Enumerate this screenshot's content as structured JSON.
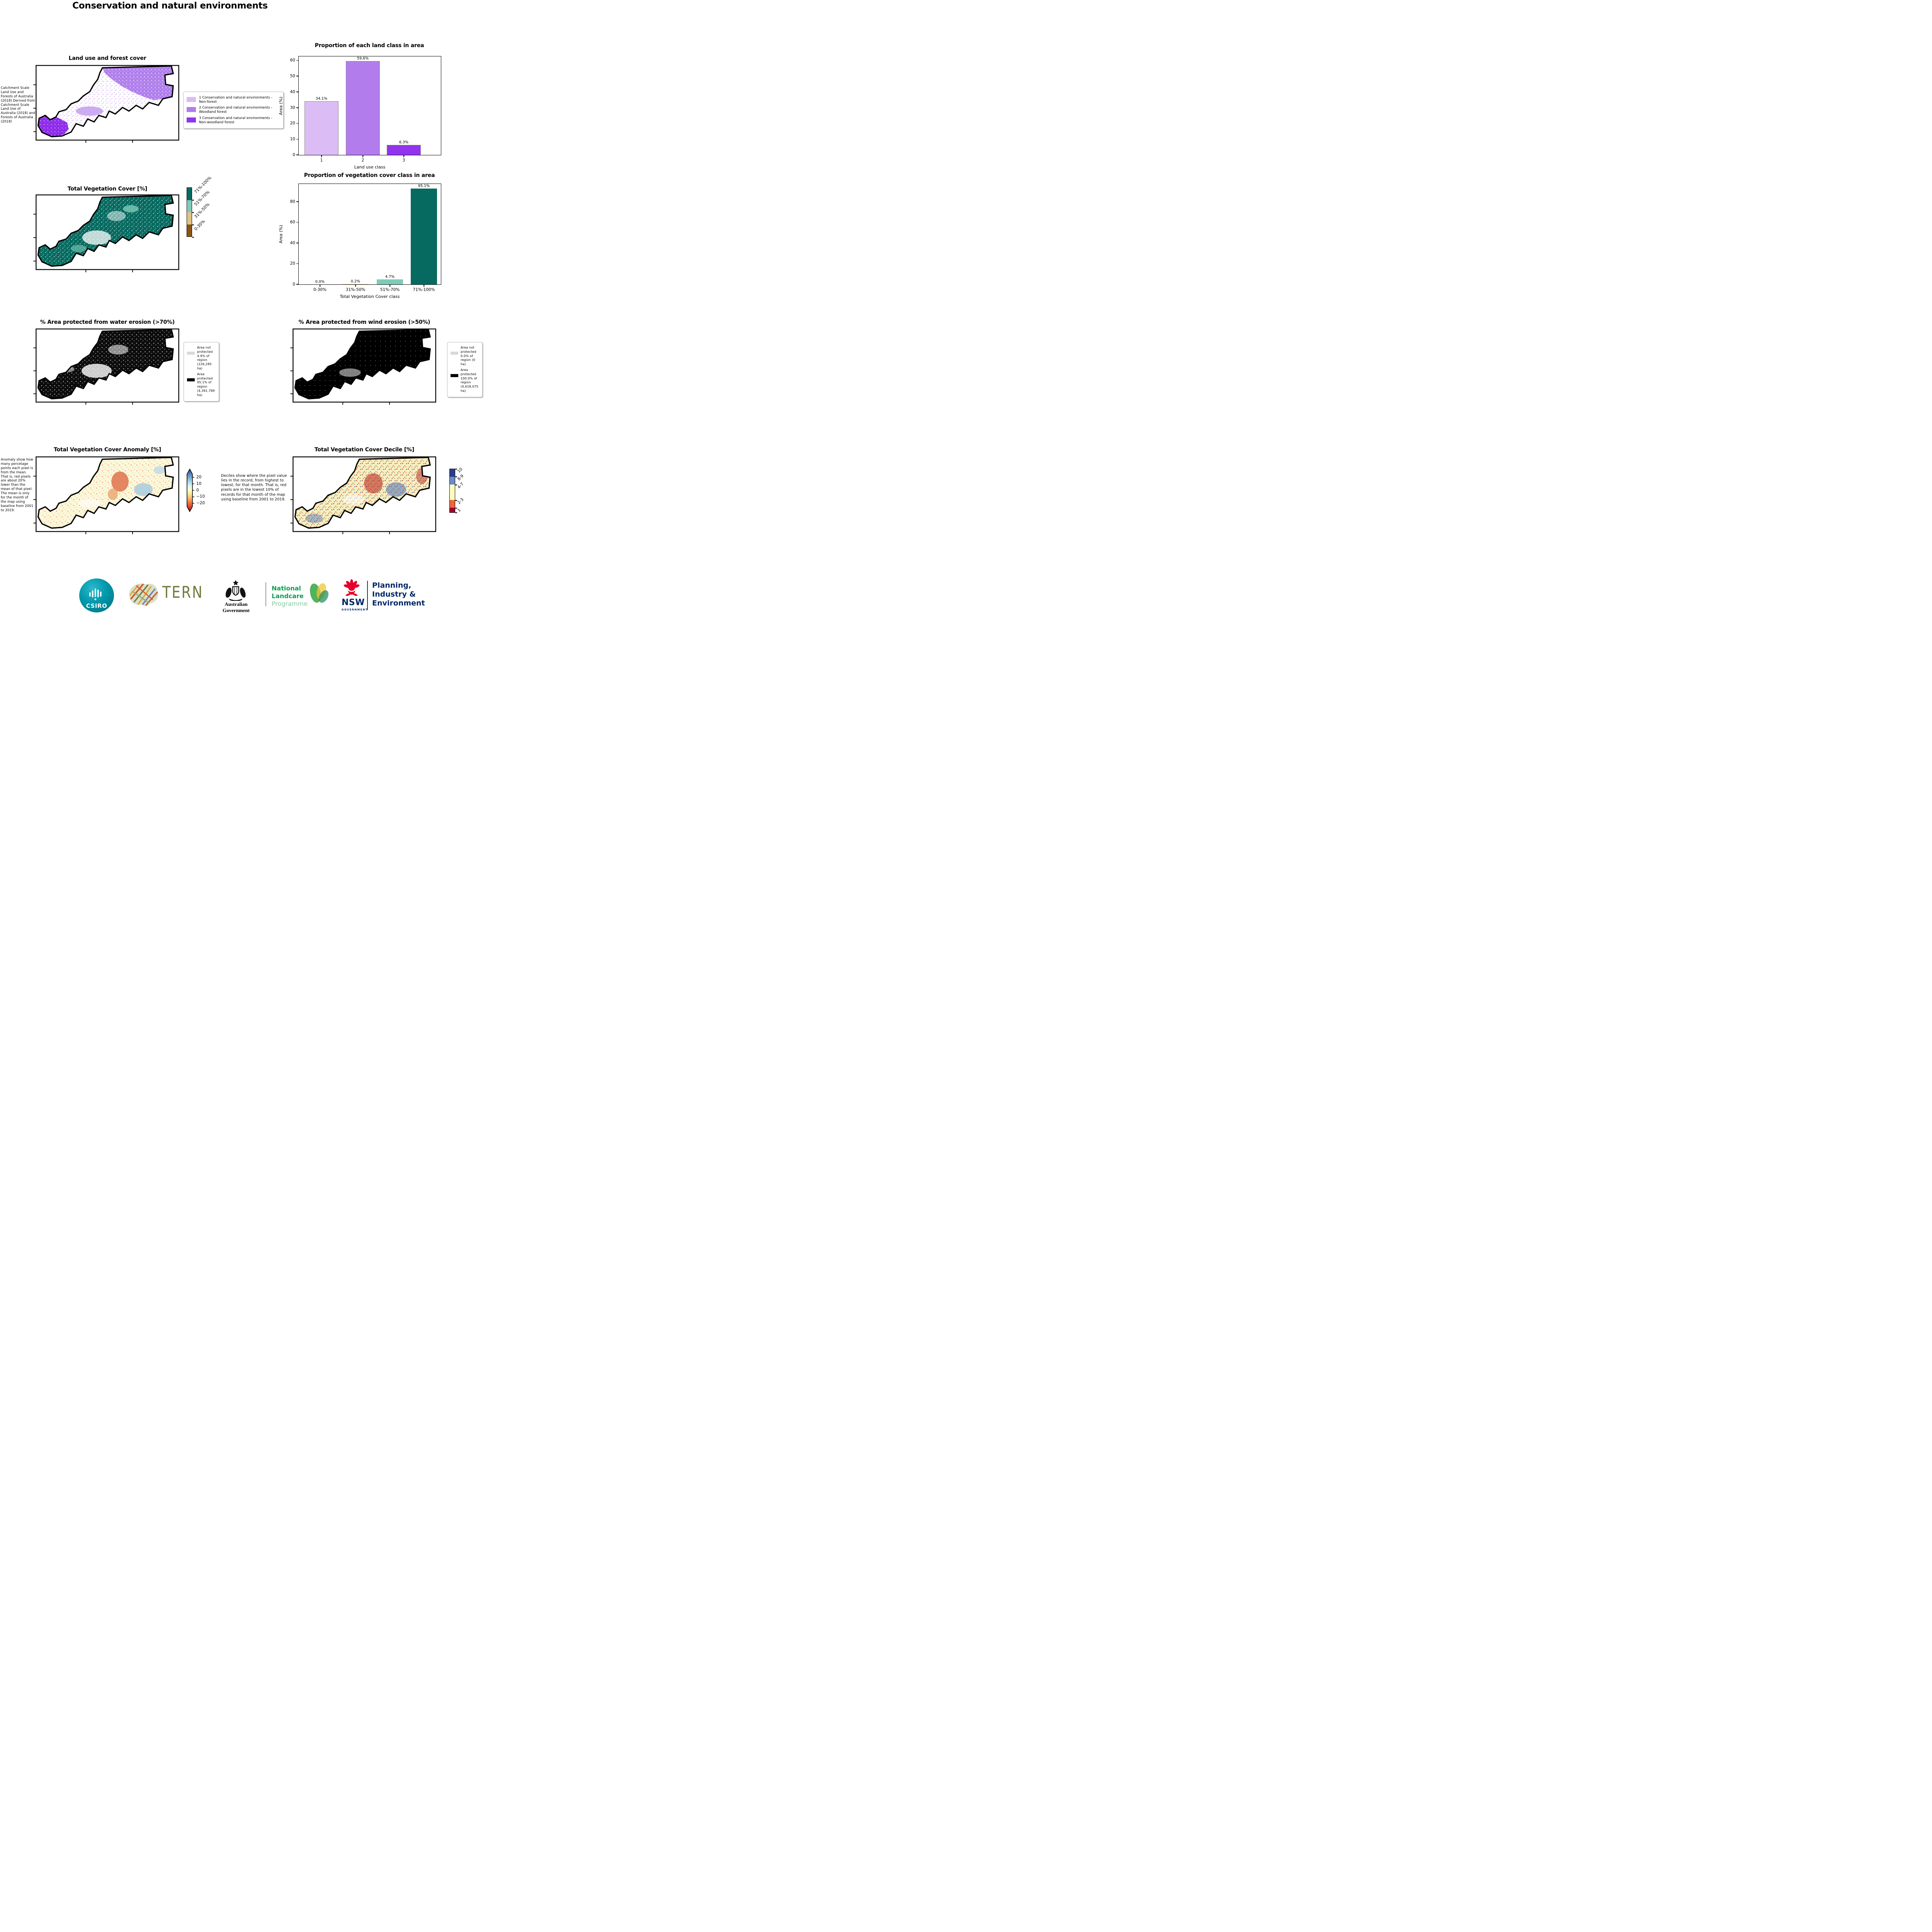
{
  "page": {
    "title": "Conservation and natural environments"
  },
  "land_use": {
    "map_title": "Land use and forest cover",
    "caption": "Catchment Scale Land Use and Forests of Australia (2018) Derived from Catchment Scale Land Use of Australia (2018) and Forests of Australia (2018)",
    "legend": [
      {
        "label": "1 Conservation and natural environments - Non-forest",
        "color": "#dcbcf5"
      },
      {
        "label": "2 Conservation and natural environments - Woodland forest",
        "color": "#b27ced"
      },
      {
        "label": "3 Conservation and natural environments - Non-woodland forest",
        "color": "#9233ee"
      }
    ]
  },
  "veg_cover": {
    "map_title": "Total Vegetation Cover [%]",
    "colorbar": [
      {
        "label": "71%-100%",
        "color": "#076a60"
      },
      {
        "label": "51%-70%",
        "color": "#7ecbb8"
      },
      {
        "label": "31%-50%",
        "color": "#e2c282"
      },
      {
        "label": "0-30%",
        "color": "#8a5512"
      }
    ]
  },
  "water_erosion": {
    "map_title": "% Area protected from water erosion (>70%)",
    "legend": [
      {
        "label": "Area not protected 4.9% of region (226,285 ha)",
        "color": "#d9d9d9"
      },
      {
        "label": "Area protected 95.1% of region (4,391,789 ha)",
        "color": "#000000"
      }
    ]
  },
  "wind_erosion": {
    "map_title": "% Area protected from wind erosion (>50%)",
    "legend": [
      {
        "label": "Area not protected 0.0% of region (0 ha)",
        "color": "#d9d9d9"
      },
      {
        "label": "Area protected 100.0% of region (4,618,075 ha)",
        "color": "#000000"
      }
    ]
  },
  "anomaly": {
    "map_title": "Total Vegetation Cover Anomaly [%]",
    "caption": "Anomaly show how many percetage points each pixel is from the mean. That is, red pixels are about 20% lower than the mean of that pixel. The mean is only for the month of the map using baseline from 2001 to 2019.",
    "colorbar_ticks": [
      "20",
      "10",
      "0",
      "−10",
      "−20"
    ]
  },
  "decile": {
    "map_title": "Total Vegetation Cover Decile [%]",
    "caption": "Deciles show where the pixel value lies in the record, from highest to lowest, for that month. That is, red pixels are in the lowest 10% of records for that month of the map using baseline from 2001 to 2019.",
    "colorbar": [
      {
        "label": "10",
        "color": "#2b3c8e"
      },
      {
        "label": "8-9",
        "color": "#6e8bc3"
      },
      {
        "label": "4-7",
        "color": "#fefdc0"
      },
      {
        "label": "2-3",
        "color": "#e8683f"
      },
      {
        "label": "1",
        "color": "#a50026"
      }
    ]
  },
  "chart_data": [
    {
      "type": "bar",
      "title": "Proportion of each land class in area",
      "xlabel": "Land use class",
      "ylabel": "Area (%)",
      "categories": [
        "1",
        "2",
        "3"
      ],
      "values": [
        34.1,
        59.6,
        6.3
      ],
      "bar_labels": [
        "34.1%",
        "59.6%",
        "6.3%"
      ],
      "colors": [
        "#dcbcf5",
        "#b27ced",
        "#9233ee"
      ],
      "yticks": [
        0,
        10,
        20,
        30,
        40,
        50,
        60
      ],
      "ylim": [
        0,
        62.5
      ],
      "grid": false,
      "legend_position": "none"
    },
    {
      "type": "bar",
      "title": "Proportion of vegetation cover class in area",
      "xlabel": "Total Vegetation Cover class",
      "ylabel": "Area (%)",
      "categories": [
        "0-30%",
        "31%-50%",
        "51%-70%",
        "71%-100%"
      ],
      "values": [
        0.0,
        0.2,
        4.7,
        95.1
      ],
      "bar_labels": [
        "0.0%",
        "0.2%",
        "4.7%",
        "95.1%"
      ],
      "colors": [
        "#8a5512",
        "#e2c282",
        "#7ecbb8",
        "#076a60"
      ],
      "yticks": [
        0,
        20,
        40,
        60,
        80
      ],
      "ylim": [
        0,
        97
      ],
      "grid": false,
      "legend_position": "none"
    }
  ],
  "footer": {
    "csiro_label": "CSIRO",
    "tern_label": "TERN",
    "aus_gov_label": "Australian Government",
    "landcare_line1": "National",
    "landcare_line2": "Landcare",
    "landcare_line3": "Programme",
    "nsw_label": "NSW",
    "nsw_sub_label": "GOVERNMENT",
    "dpie_line1": "Planning,",
    "dpie_line2": "Industry &",
    "dpie_line3": "Environment",
    "colors": {
      "csiro_teal": "#0097ab",
      "tern_olive": "#6f7c3d",
      "landcare_green": "#0c9c4e",
      "landcare_light_green": "#83ca9c",
      "nsw_red": "#e4002b",
      "navy": "#002664"
    }
  }
}
